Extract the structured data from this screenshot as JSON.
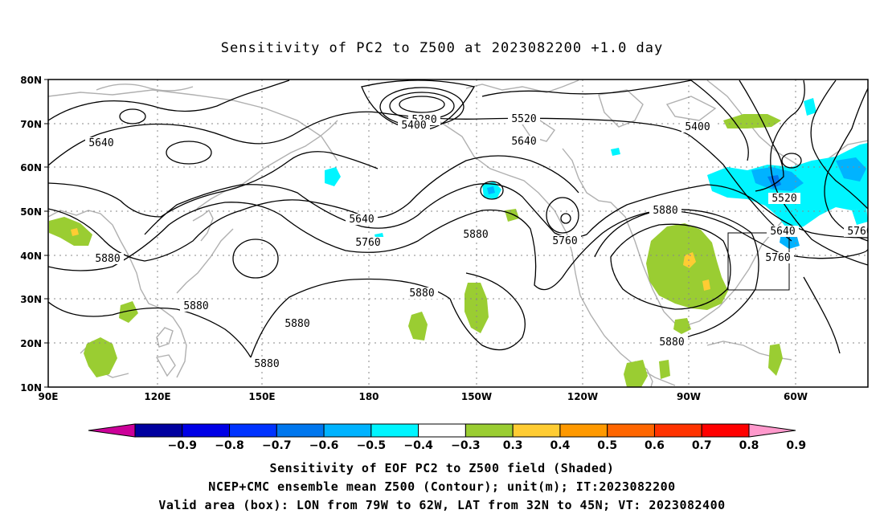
{
  "title": "Sensitivity of PC2 to Z500 at 2023082200 +1.0 day",
  "map": {
    "lat_labels": [
      "80N",
      "70N",
      "60N",
      "50N",
      "40N",
      "30N",
      "20N",
      "10N"
    ],
    "lon_labels": [
      "90E",
      "120E",
      "150E",
      "180",
      "150W",
      "120W",
      "90W",
      "60W"
    ],
    "grid": true,
    "contour_labels": [
      "5280",
      "5400",
      "5520",
      "5640",
      "5400",
      "5640",
      "5640",
      "5760",
      "5880",
      "5880",
      "5760",
      "5520",
      "5640",
      "5760",
      "5880",
      "5880",
      "5880",
      "5880",
      "5880",
      "5880",
      "5760"
    ],
    "box": {
      "lon_from": "79W",
      "lon_to": "62W",
      "lat_from": "32N",
      "lat_to": "45N"
    },
    "colors": {
      "positive_03": "#9acd32",
      "positive_04": "#ffcc33",
      "cyan": "#00f5ff",
      "light_blue": "#00ccff",
      "blue": "#0066ff",
      "contour": "#000000",
      "coast": "#b0b0b0",
      "grid": "#888888"
    }
  },
  "colorbar": {
    "labels": [
      "−0.9",
      "−0.8",
      "−0.7",
      "−0.6",
      "−0.5",
      "−0.4",
      "−0.3",
      "0.3",
      "0.4",
      "0.5",
      "0.6",
      "0.7",
      "0.8",
      "0.9"
    ],
    "colors": [
      "#cc0099",
      "#00009f",
      "#0000e6",
      "#0033ff",
      "#0077ee",
      "#00b3ff",
      "#00f5ff",
      "#ffffff",
      "#9acd32",
      "#ffcc33",
      "#ff9900",
      "#ff6600",
      "#ff3300",
      "#ff0000",
      "#ff99cc"
    ]
  },
  "footer": {
    "line1": "Sensitivity of EOF PC2 to Z500 field (Shaded)",
    "line2": "NCEP+CMC ensemble mean Z500 (Contour); unit(m); IT:2023082200",
    "line3": "Valid area (box): LON from 79W to 62W, LAT from 32N to 45N; VT: 2023082400"
  }
}
